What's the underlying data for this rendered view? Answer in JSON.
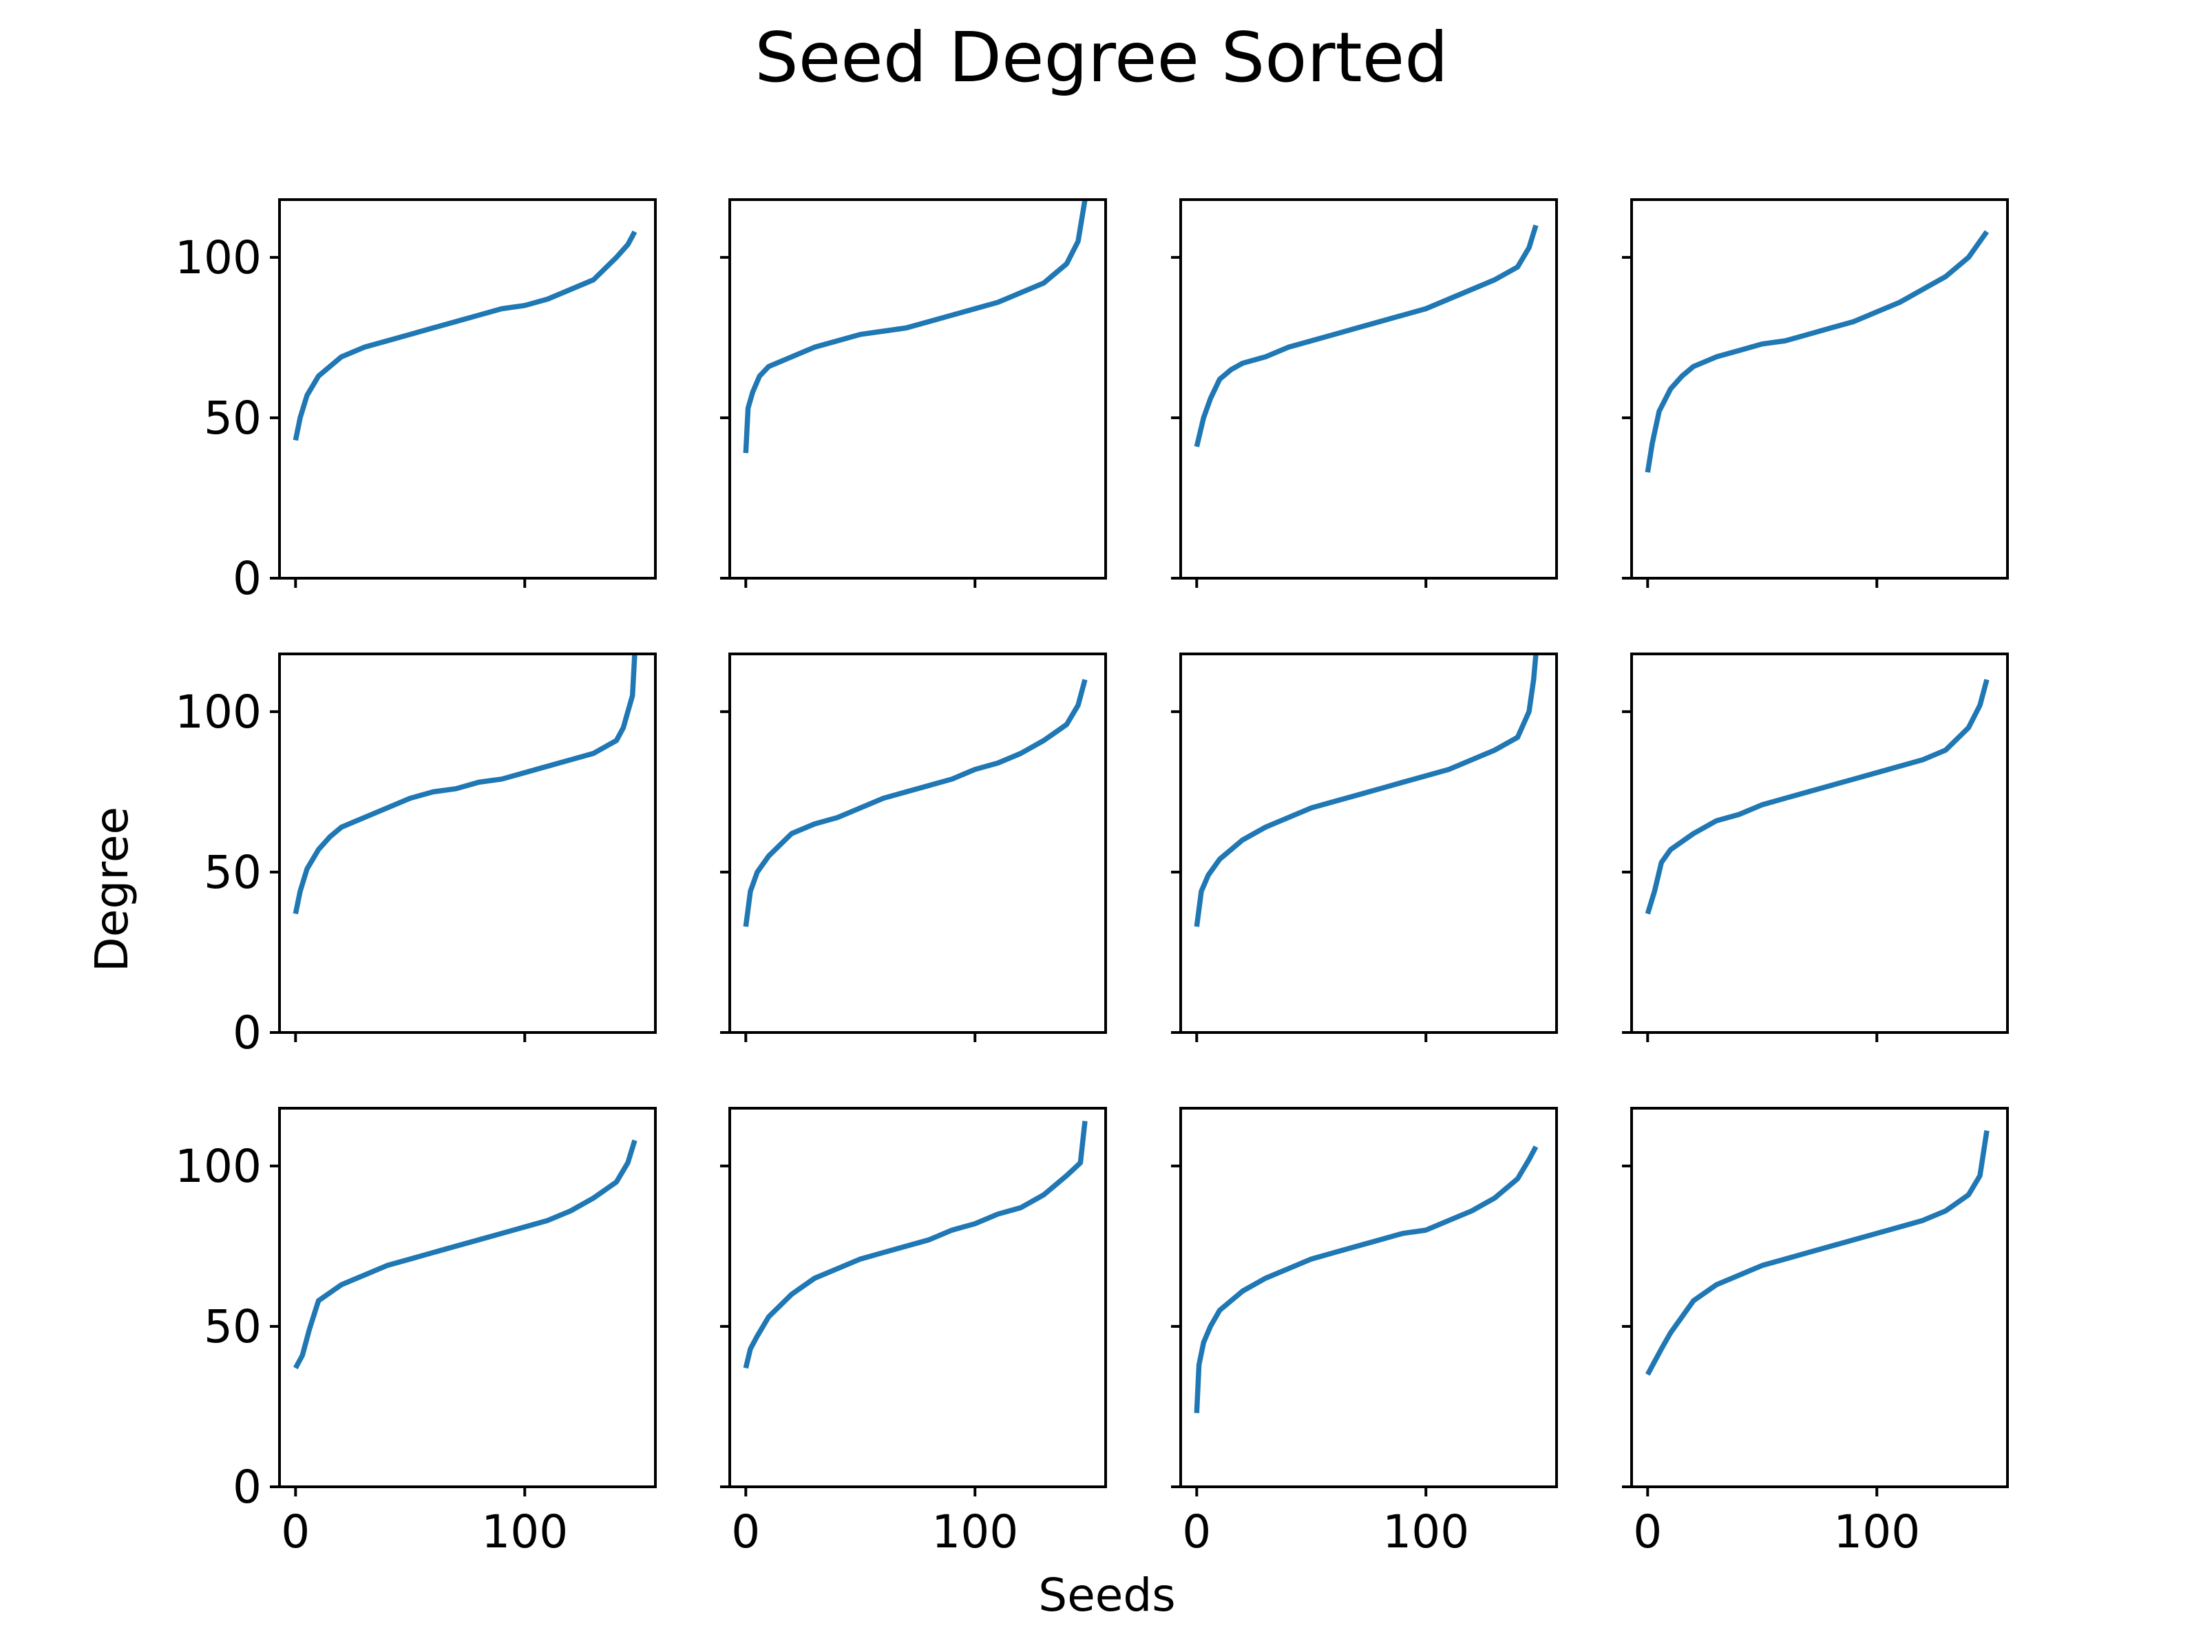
{
  "chart_data": {
    "type": "line",
    "title": "Seed Degree Sorted",
    "xlabel": "Seeds",
    "ylabel": "Degree",
    "grid": false,
    "line_color": "#1f77b4",
    "xlim": [
      -7,
      157
    ],
    "ylim": [
      0,
      118
    ],
    "xticks": [
      0,
      100
    ],
    "xtick_labels": [
      "0",
      "100"
    ],
    "yticks": [
      0,
      50,
      100
    ],
    "ytick_labels": [
      "0",
      "50",
      "100"
    ],
    "layout": {
      "rows": 3,
      "cols": 4,
      "sharex": true,
      "sharey": true
    },
    "panels": [
      {
        "x": [
          0,
          2,
          5,
          10,
          20,
          30,
          40,
          50,
          60,
          70,
          80,
          90,
          100,
          110,
          120,
          130,
          140,
          145,
          148
        ],
        "y": [
          43,
          50,
          57,
          63,
          69,
          72,
          74,
          76,
          78,
          80,
          82,
          84,
          85,
          87,
          90,
          93,
          100,
          104,
          108
        ]
      },
      {
        "x": [
          0,
          1,
          3,
          6,
          10,
          20,
          30,
          40,
          50,
          60,
          70,
          80,
          90,
          100,
          110,
          120,
          130,
          140,
          145,
          148
        ],
        "y": [
          39,
          53,
          58,
          63,
          66,
          69,
          72,
          74,
          76,
          77,
          78,
          80,
          82,
          84,
          86,
          89,
          92,
          98,
          105,
          118
        ]
      },
      {
        "x": [
          0,
          3,
          6,
          10,
          15,
          20,
          30,
          40,
          50,
          60,
          70,
          80,
          90,
          100,
          110,
          120,
          130,
          140,
          145,
          148
        ],
        "y": [
          41,
          50,
          56,
          62,
          65,
          67,
          69,
          72,
          74,
          76,
          78,
          80,
          82,
          84,
          87,
          90,
          93,
          97,
          103,
          110
        ]
      },
      {
        "x": [
          0,
          2,
          5,
          10,
          15,
          20,
          30,
          40,
          50,
          60,
          70,
          80,
          90,
          100,
          110,
          120,
          130,
          140,
          145,
          148
        ],
        "y": [
          33,
          42,
          52,
          59,
          63,
          66,
          69,
          71,
          73,
          74,
          76,
          78,
          80,
          83,
          86,
          90,
          94,
          100,
          105,
          108
        ]
      },
      {
        "x": [
          0,
          2,
          5,
          10,
          15,
          20,
          30,
          40,
          50,
          60,
          70,
          80,
          90,
          100,
          110,
          120,
          130,
          140,
          143,
          145,
          147,
          148
        ],
        "y": [
          37,
          44,
          51,
          57,
          61,
          64,
          67,
          70,
          73,
          75,
          76,
          78,
          79,
          81,
          83,
          85,
          87,
          91,
          95,
          100,
          105,
          118
        ]
      },
      {
        "x": [
          0,
          2,
          5,
          10,
          20,
          30,
          40,
          50,
          60,
          70,
          80,
          90,
          100,
          110,
          120,
          130,
          140,
          145,
          148
        ],
        "y": [
          33,
          44,
          50,
          55,
          62,
          65,
          67,
          70,
          73,
          75,
          77,
          79,
          82,
          84,
          87,
          91,
          96,
          102,
          110
        ]
      },
      {
        "x": [
          0,
          2,
          5,
          10,
          20,
          30,
          40,
          50,
          60,
          70,
          80,
          90,
          100,
          110,
          120,
          130,
          140,
          145,
          147,
          148
        ],
        "y": [
          33,
          44,
          49,
          54,
          60,
          64,
          67,
          70,
          72,
          74,
          76,
          78,
          80,
          82,
          85,
          88,
          92,
          100,
          110,
          118
        ]
      },
      {
        "x": [
          0,
          3,
          6,
          10,
          20,
          30,
          40,
          50,
          60,
          70,
          80,
          90,
          100,
          110,
          120,
          130,
          140,
          145,
          148
        ],
        "y": [
          37,
          44,
          53,
          57,
          62,
          66,
          68,
          71,
          73,
          75,
          77,
          79,
          81,
          83,
          85,
          88,
          95,
          102,
          110
        ]
      },
      {
        "x": [
          0,
          3,
          6,
          10,
          20,
          30,
          40,
          50,
          60,
          70,
          80,
          90,
          100,
          110,
          120,
          130,
          140,
          145,
          148
        ],
        "y": [
          37,
          41,
          49,
          58,
          63,
          66,
          69,
          71,
          73,
          75,
          77,
          79,
          81,
          83,
          86,
          90,
          95,
          101,
          108
        ]
      },
      {
        "x": [
          0,
          2,
          5,
          10,
          20,
          30,
          40,
          50,
          60,
          70,
          80,
          90,
          100,
          110,
          120,
          130,
          140,
          146,
          148
        ],
        "y": [
          37,
          43,
          47,
          53,
          60,
          65,
          68,
          71,
          73,
          75,
          77,
          80,
          82,
          85,
          87,
          91,
          97,
          101,
          114
        ]
      },
      {
        "x": [
          0,
          1,
          3,
          6,
          10,
          20,
          30,
          40,
          50,
          60,
          70,
          80,
          90,
          100,
          110,
          120,
          130,
          140,
          145,
          148
        ],
        "y": [
          23,
          38,
          45,
          50,
          55,
          61,
          65,
          68,
          71,
          73,
          75,
          77,
          79,
          80,
          83,
          86,
          90,
          96,
          102,
          106
        ]
      },
      {
        "x": [
          0,
          3,
          6,
          10,
          20,
          30,
          40,
          50,
          60,
          70,
          80,
          90,
          100,
          110,
          120,
          130,
          140,
          145,
          148
        ],
        "y": [
          35,
          39,
          43,
          48,
          58,
          63,
          66,
          69,
          71,
          73,
          75,
          77,
          79,
          81,
          83,
          86,
          91,
          97,
          111
        ]
      }
    ]
  }
}
